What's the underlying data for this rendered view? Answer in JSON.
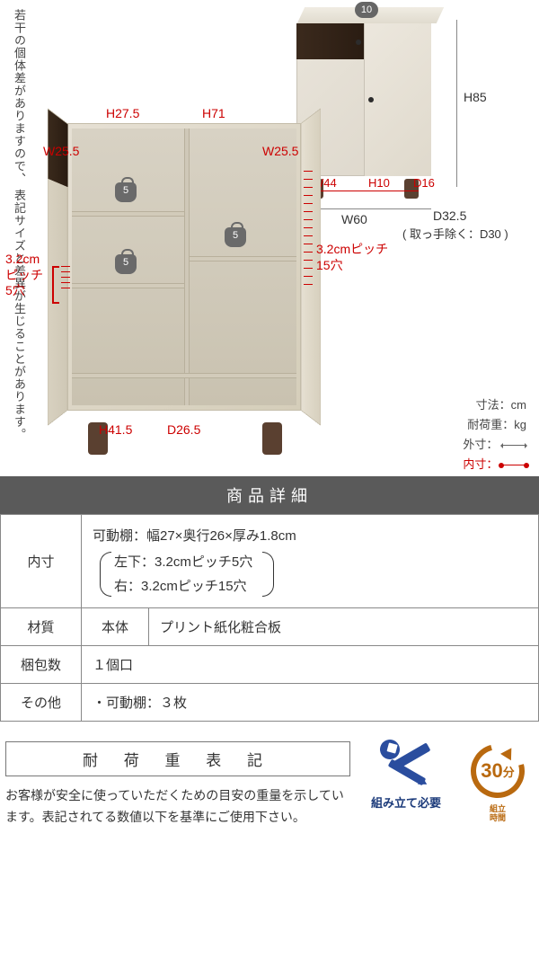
{
  "disclaimer": "若干の個体差がありますので、\n表記サイズと差異が生じることがあります。",
  "closed_cabinet": {
    "top_weight_badge": "10",
    "dims": {
      "H": "H85",
      "W": "W60",
      "D": "D32.5",
      "D_note": "( 取っ手除く：D30 )",
      "legs_W": "W44",
      "legs_H": "H10",
      "legs_D": "D16"
    }
  },
  "open_cabinet": {
    "dims": {
      "H_left_upper": "H27.5",
      "H_right": "H71",
      "W_left": "W25.5",
      "W_right": "W25.5",
      "H_left_lower": "H41.5",
      "D_inner": "D26.5"
    },
    "pitch_left": {
      "text_line1": "3.2cm",
      "text_line2": "ピッチ",
      "text_line3": "5穴",
      "holes": 5
    },
    "pitch_right": {
      "text_line1": "3.2cmピッチ",
      "text_line2": "15穴",
      "holes": 15
    },
    "weight_badges": [
      "5",
      "5",
      "5"
    ]
  },
  "legend": {
    "dimension": "寸法：cm",
    "load": "耐荷重：kg",
    "outer": "外寸：",
    "inner": "内寸："
  },
  "details": {
    "header": "商品詳細",
    "rows": {
      "inner_size": {
        "label": "内寸",
        "main": "可動棚：幅27×奥行26×厚み1.8cm",
        "sub1": "左下：3.2cmピッチ5穴",
        "sub2": "右：3.2cmピッチ15穴"
      },
      "material": {
        "label": "材質",
        "sub": "本体",
        "value": "プリント紙化粧合板"
      },
      "packages": {
        "label": "梱包数",
        "value": "１個口"
      },
      "other": {
        "label": "その他",
        "value": "・可動棚：３枚"
      }
    }
  },
  "load_section": {
    "title": "耐 荷 重 表 記",
    "text": "お客様が安全に使っていただくための目安の重量を示しています。表記されてる数値以下を基準にご使用下さい。"
  },
  "assembly": {
    "label": "組み立て必要",
    "color": "#1b3a7a"
  },
  "time": {
    "minutes": "30",
    "unit": "分",
    "label_top": "組立",
    "label_bottom": "時間",
    "color": "#b9690f"
  }
}
